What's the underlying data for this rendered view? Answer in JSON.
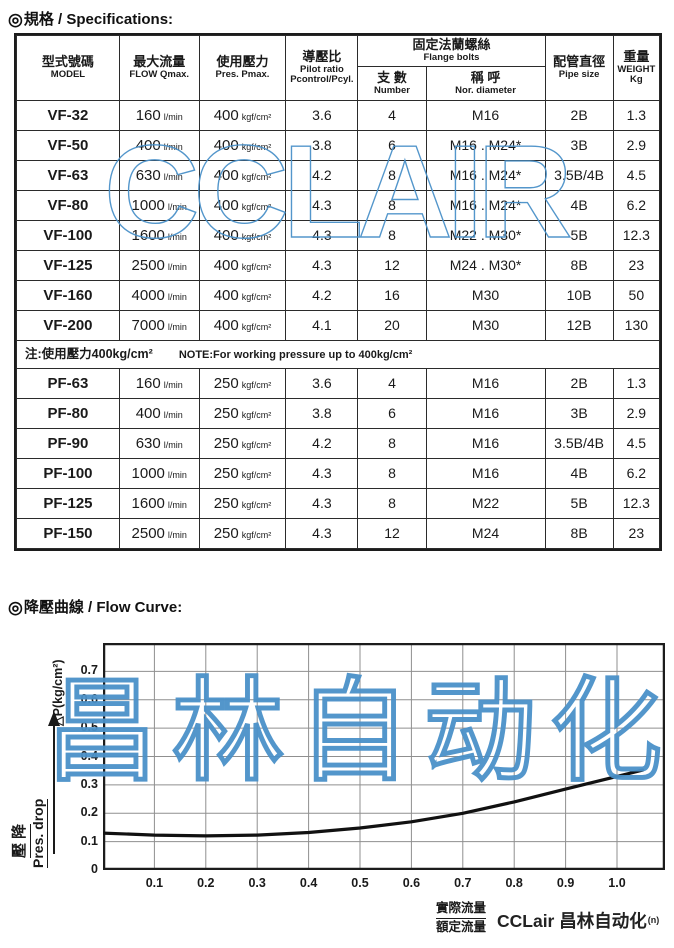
{
  "colors": {
    "watermark_blue": "#4a90c8",
    "grid_gray": "#8f8f8f",
    "line_black": "#111111",
    "border_black": "#1c1c1c"
  },
  "spec": {
    "heading_bullet": "◎",
    "heading": "規格 / Specifications:",
    "watermark": "CCLAIR",
    "table": {
      "columns": {
        "model": {
          "zh": "型式號碼",
          "en": "MODEL"
        },
        "flow": {
          "zh": "最大流量",
          "en": "FLOW Qmax."
        },
        "pressure": {
          "zh": "使用壓力",
          "en": "Pres. Pmax."
        },
        "pilot": {
          "zh": "導壓比",
          "en": "Pilot ratio",
          "en2": "Pcontrol/Pcyl."
        },
        "flange": {
          "zh": "固定法蘭螺絲",
          "en": "Flange bolts"
        },
        "bolt_number": {
          "zh": "支 數",
          "en": "Number"
        },
        "bolt_diameter": {
          "zh": "稱 呼",
          "en": "Nor. diameter"
        },
        "pipe": {
          "zh": "配管直徑",
          "en": "Pipe size"
        },
        "weight": {
          "zh": "重量",
          "en": "WEIGHT",
          "en2": "Kg"
        }
      },
      "flow_unit": "l/min",
      "pressure_unit": "kgf/cm²",
      "vf_rows": [
        {
          "model": "VF-32",
          "flow": "160",
          "pressure": "400",
          "ratio": "3.6",
          "number": "4",
          "diameter": "M16",
          "pipe": "2B",
          "weight": "1.3"
        },
        {
          "model": "VF-50",
          "flow": "400",
          "pressure": "400",
          "ratio": "3.8",
          "number": "6",
          "diameter": "M16 . M24*",
          "pipe": "3B",
          "weight": "2.9"
        },
        {
          "model": "VF-63",
          "flow": "630",
          "pressure": "400",
          "ratio": "4.2",
          "number": "8",
          "diameter": "M16 . M24*",
          "pipe": "3.5B/4B",
          "weight": "4.5"
        },
        {
          "model": "VF-80",
          "flow": "1000",
          "pressure": "400",
          "ratio": "4.3",
          "number": "8",
          "diameter": "M16 . M24*",
          "pipe": "4B",
          "weight": "6.2"
        },
        {
          "model": "VF-100",
          "flow": "1600",
          "pressure": "400",
          "ratio": "4.3",
          "number": "8",
          "diameter": "M22 . M30*",
          "pipe": "5B",
          "weight": "12.3"
        },
        {
          "model": "VF-125",
          "flow": "2500",
          "pressure": "400",
          "ratio": "4.3",
          "number": "12",
          "diameter": "M24 . M30*",
          "pipe": "8B",
          "weight": "23"
        },
        {
          "model": "VF-160",
          "flow": "4000",
          "pressure": "400",
          "ratio": "4.2",
          "number": "16",
          "diameter": "M30",
          "pipe": "10B",
          "weight": "50"
        },
        {
          "model": "VF-200",
          "flow": "7000",
          "pressure": "400",
          "ratio": "4.1",
          "number": "20",
          "diameter": "M30",
          "pipe": "12B",
          "weight": "130"
        }
      ],
      "note": {
        "zh": "注:使用壓力400kg/cm²",
        "en": "NOTE:For working pressure up to 400kg/cm²"
      },
      "pf_rows": [
        {
          "model": "PF-63",
          "flow": "160",
          "pressure": "250",
          "ratio": "3.6",
          "number": "4",
          "diameter": "M16",
          "pipe": "2B",
          "weight": "1.3"
        },
        {
          "model": "PF-80",
          "flow": "400",
          "pressure": "250",
          "ratio": "3.8",
          "number": "6",
          "diameter": "M16",
          "pipe": "3B",
          "weight": "2.9"
        },
        {
          "model": "PF-90",
          "flow": "630",
          "pressure": "250",
          "ratio": "4.2",
          "number": "8",
          "diameter": "M16",
          "pipe": "3.5B/4B",
          "weight": "4.5"
        },
        {
          "model": "PF-100",
          "flow": "1000",
          "pressure": "250",
          "ratio": "4.3",
          "number": "8",
          "diameter": "M16",
          "pipe": "4B",
          "weight": "6.2"
        },
        {
          "model": "PF-125",
          "flow": "1600",
          "pressure": "250",
          "ratio": "4.3",
          "number": "8",
          "diameter": "M22",
          "pipe": "5B",
          "weight": "12.3"
        },
        {
          "model": "PF-150",
          "flow": "2500",
          "pressure": "250",
          "ratio": "4.3",
          "number": "12",
          "diameter": "M24",
          "pipe": "8B",
          "weight": "23"
        }
      ]
    }
  },
  "curve": {
    "heading_bullet": "◎",
    "heading": "降壓曲線 / Flow Curve:",
    "watermark": "昌林自动化",
    "y_axis_label": "△P(kg/cm²)",
    "y_side_zh": "壓 降",
    "y_side_en": "Pres. drop",
    "x_title_numerator": "實際流量",
    "x_title_denominator": "額定流量",
    "x_title_suffix": "(n)",
    "brand": "CCLair 昌林自动化"
  },
  "chart_data": {
    "type": "line",
    "title": "降壓曲線 / Flow Curve",
    "xlabel": "實際流量/額定流量 (n)",
    "ylabel": "△P(kg/cm²) 壓降 Pres. drop",
    "xlim": [
      0,
      1.093
    ],
    "ylim": [
      0,
      0.8
    ],
    "x_ticks": [
      0.1,
      0.2,
      0.3,
      0.4,
      0.5,
      0.6,
      0.7,
      0.8,
      0.9,
      1.0
    ],
    "y_ticks": [
      0,
      0.1,
      0.2,
      0.3,
      0.4,
      0.5,
      0.6,
      0.7
    ],
    "grid": true,
    "legend": "none",
    "series": [
      {
        "name": "pressure-drop-curve",
        "x": [
          0,
          0.1,
          0.2,
          0.3,
          0.4,
          0.5,
          0.6,
          0.7,
          0.8,
          0.9,
          1.0,
          1.05
        ],
        "y": [
          0.13,
          0.123,
          0.12,
          0.123,
          0.132,
          0.148,
          0.17,
          0.2,
          0.24,
          0.285,
          0.33,
          0.352
        ]
      }
    ]
  }
}
